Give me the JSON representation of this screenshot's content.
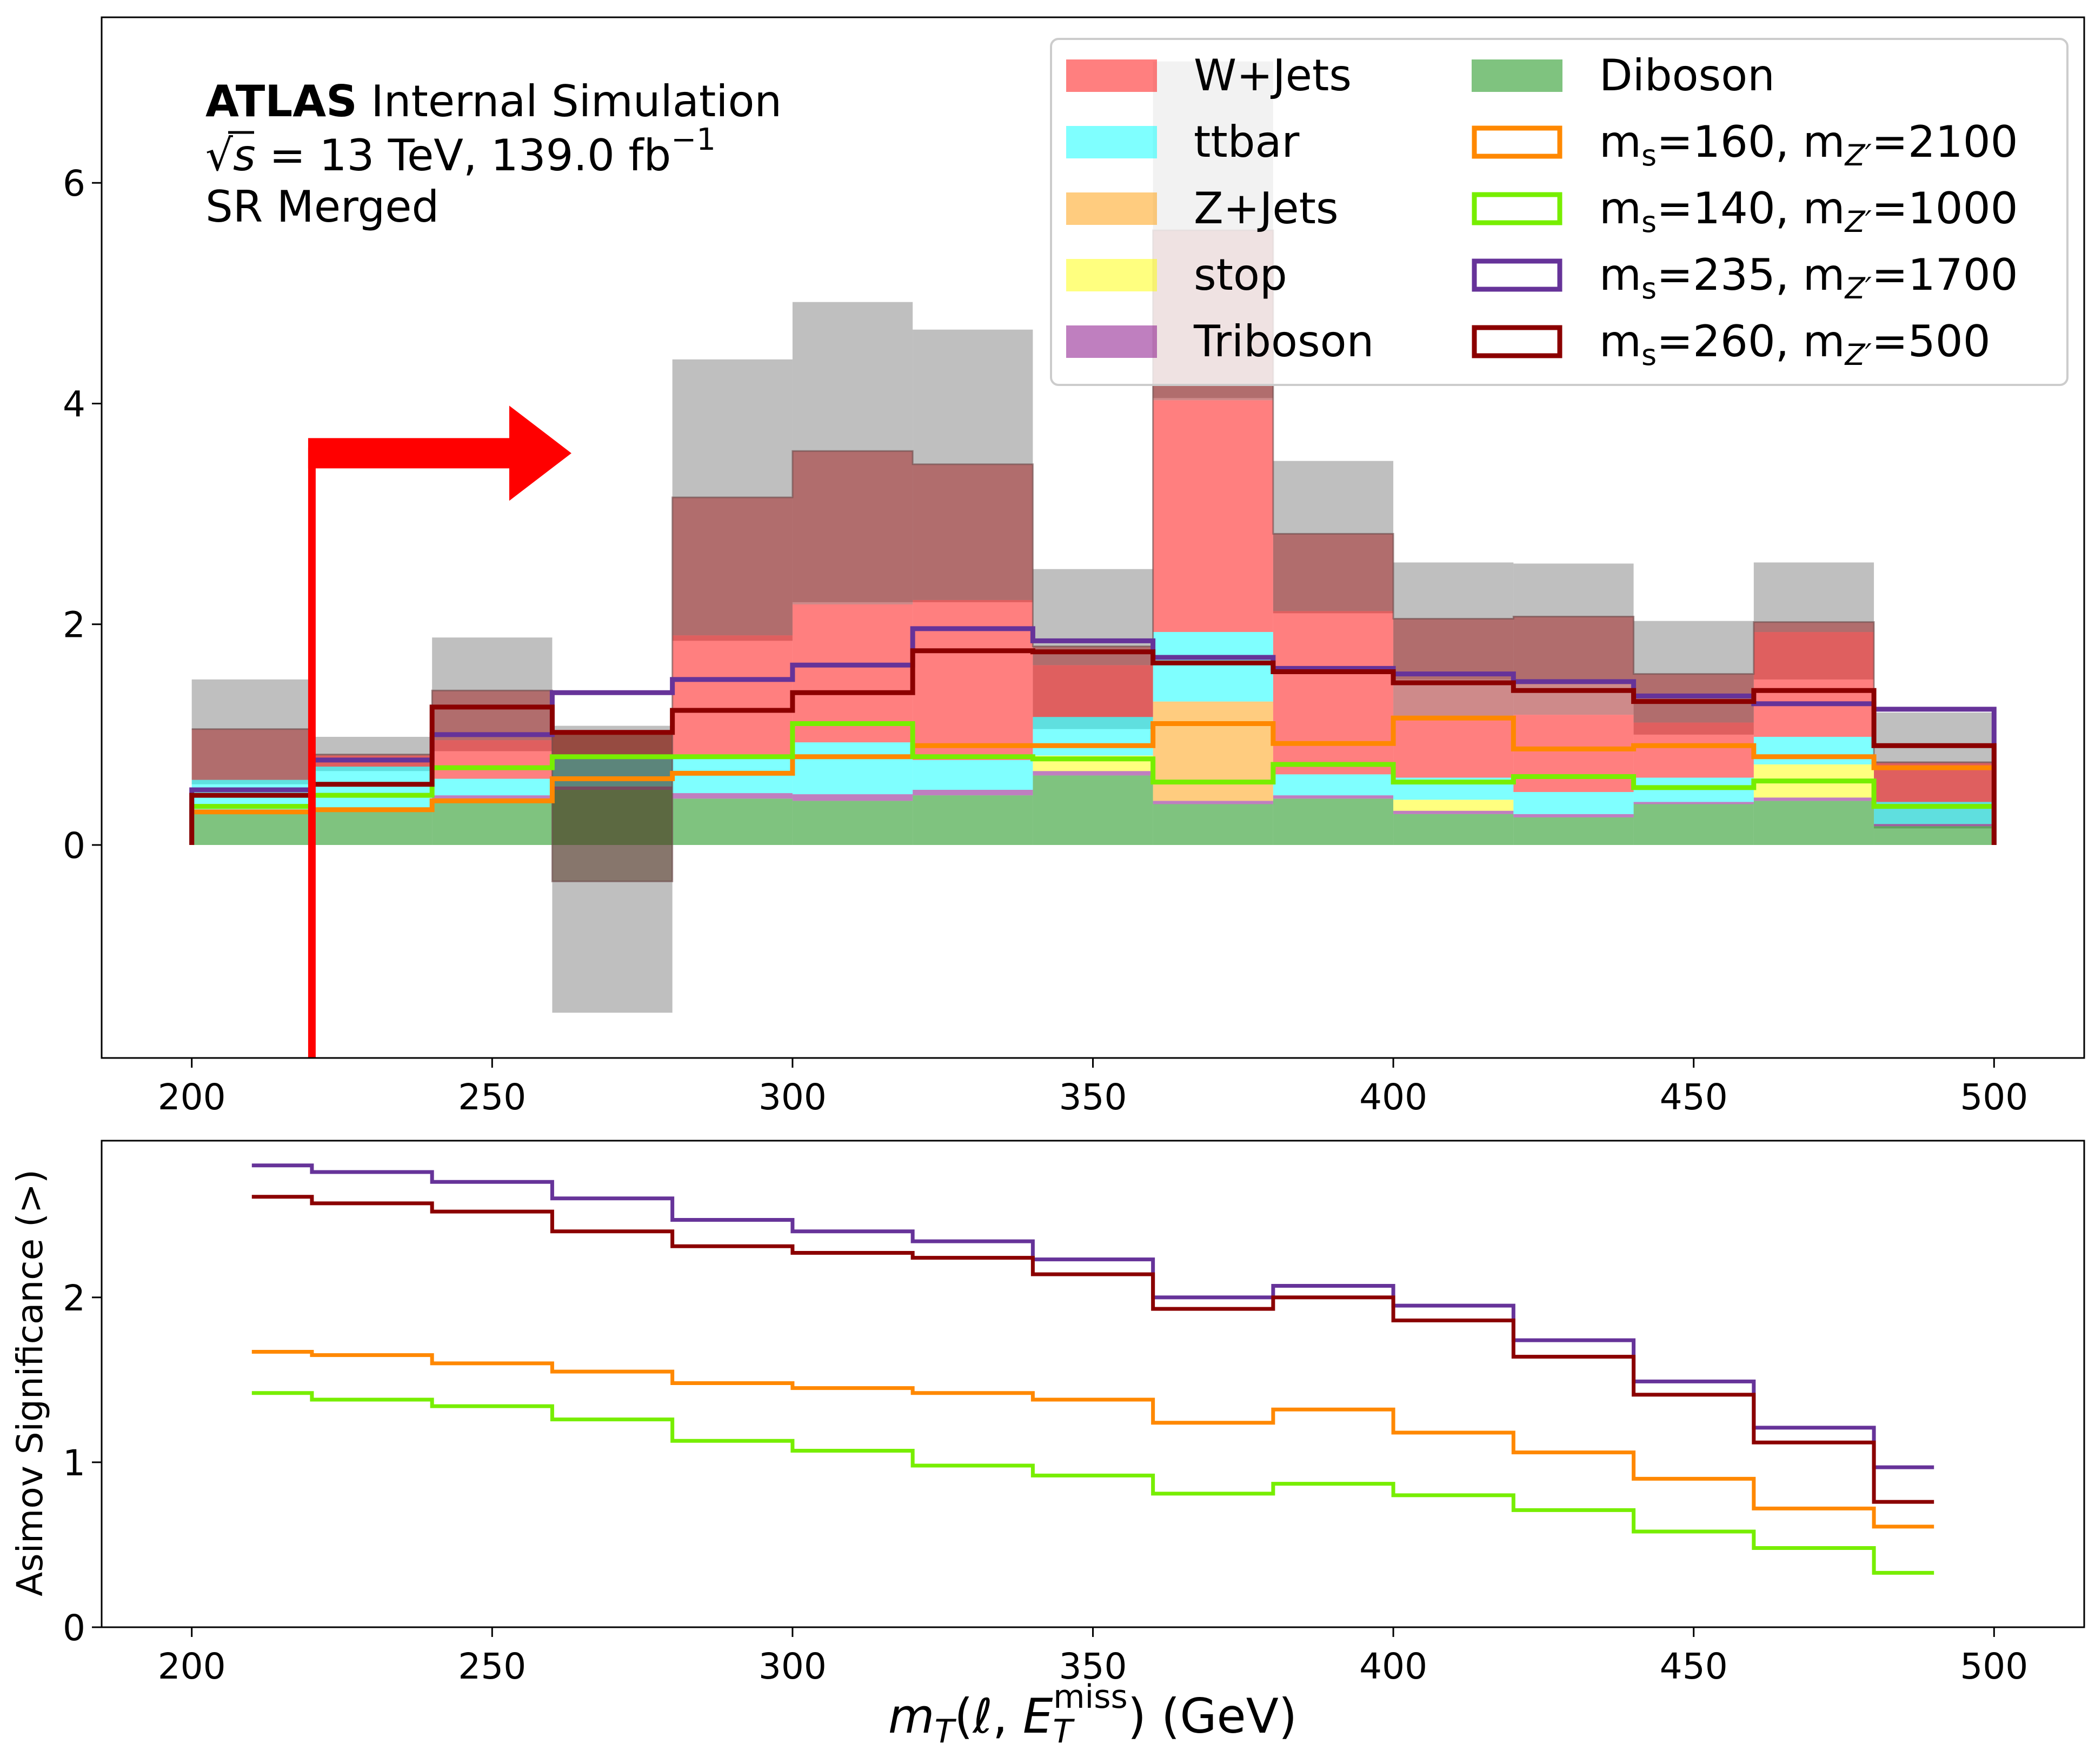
{
  "chart_data": [
    {
      "type": "bar",
      "panel": "top",
      "annotation": {
        "title_bold": "ATLAS",
        "title_rest": " Internal Simulation",
        "line2_sqrt": "√",
        "line2_s": "s",
        "line2_rest": " = 13 TeV, 139.0 fb",
        "line2_sup": "−1",
        "line3": "SR Merged"
      },
      "x_bin_edges": [
        200,
        220,
        240,
        260,
        280,
        300,
        320,
        340,
        360,
        380,
        400,
        420,
        440,
        460,
        480,
        500
      ],
      "xlim": [
        185,
        515
      ],
      "ylim": [
        -1.93,
        7.5
      ],
      "yticks": [
        0,
        2,
        4,
        6
      ],
      "xticks": [
        200,
        250,
        300,
        350,
        400,
        450,
        500
      ],
      "stack_note": "Stacked backgrounds with statistical uncertainty band",
      "backgrounds": [
        {
          "name": "Diboson",
          "color": "#008800",
          "alpha": 0.5,
          "values": [
            0.28,
            0.3,
            0.42,
            0.5,
            0.42,
            0.4,
            0.45,
            0.63,
            0.37,
            0.42,
            0.28,
            0.25,
            0.37,
            0.4,
            0.17
          ]
        },
        {
          "name": "Triboson",
          "color": "#800080",
          "alpha": 0.5,
          "values": [
            0.03,
            0.03,
            0.03,
            0.03,
            0.05,
            0.06,
            0.05,
            0.04,
            0.03,
            0.03,
            0.03,
            0.03,
            0.02,
            0.03,
            0.02
          ]
        },
        {
          "name": "stop",
          "color": "#ffff00",
          "alpha": 0.5,
          "values": [
            0.0,
            0.0,
            0.0,
            0.0,
            0.0,
            0.0,
            0.0,
            0.14,
            0.0,
            0.0,
            0.1,
            0.0,
            0.0,
            0.3,
            0.0
          ]
        },
        {
          "name": "Z+Jets",
          "color": "#ff9900",
          "alpha": 0.5,
          "values": [
            0.0,
            0.0,
            0.0,
            0.0,
            0.0,
            0.0,
            0.0,
            0.0,
            0.9,
            0.0,
            0.0,
            0.0,
            0.0,
            0.0,
            0.0
          ]
        },
        {
          "name": "ttbar",
          "color": "#00ffff",
          "alpha": 0.5,
          "values": [
            0.28,
            0.38,
            0.15,
            0.28,
            0.33,
            0.47,
            0.27,
            0.35,
            0.63,
            0.19,
            0.2,
            0.2,
            0.22,
            0.25,
            0.2
          ]
        },
        {
          "name": "W+Jets",
          "color": "#ff0000",
          "alpha": 0.5,
          "values": [
            0.0,
            0.1,
            0.35,
            0.2,
            1.1,
            1.25,
            1.45,
            0.47,
            2.1,
            1.48,
            0.55,
            0.7,
            0.5,
            0.95,
            0.35
          ]
        }
      ],
      "total_visible": [
        1.05,
        0.82,
        1.4,
        -0.33,
        3.15,
        3.57,
        3.45,
        1.8,
        5.57,
        2.82,
        2.05,
        2.07,
        1.55,
        2.02,
        0.75
      ],
      "uncertainty_band": {
        "color": "#808080",
        "alpha": 0.5,
        "low": [
          0.55,
          0.67,
          0.85,
          -1.52,
          1.85,
          2.2,
          2.2,
          1.05,
          4.05,
          2.1,
          1.5,
          1.5,
          1.0,
          1.5,
          0.15
        ],
        "high": [
          1.5,
          0.98,
          1.88,
          1.08,
          4.4,
          4.92,
          4.67,
          2.5,
          7.1,
          3.48,
          2.56,
          2.55,
          2.03,
          2.56,
          1.2
        ]
      },
      "signals": [
        {
          "name": "m_s=160, m_Z'=2100",
          "sub_s": "s",
          "sub_z": "Z′",
          "label_parts": [
            "m",
            "s",
            "=160, m",
            "Z′",
            "=2100"
          ],
          "color": "#ff8800",
          "values": [
            0.3,
            0.32,
            0.4,
            0.6,
            0.65,
            0.8,
            0.9,
            0.9,
            1.1,
            0.92,
            1.15,
            0.87,
            0.9,
            0.8,
            0.7
          ]
        },
        {
          "name": "m_s=140, m_Z'=1000",
          "label_parts": [
            "m",
            "s",
            "=140, m",
            "Z′",
            "=1000"
          ],
          "color": "#77ee00",
          "values": [
            0.35,
            0.45,
            0.7,
            0.8,
            0.8,
            1.1,
            0.8,
            0.78,
            0.57,
            0.73,
            0.57,
            0.62,
            0.52,
            0.58,
            0.35
          ]
        },
        {
          "name": "m_s=235, m_Z'=1700",
          "label_parts": [
            "m",
            "s",
            "=235, m",
            "Z′",
            "=1700"
          ],
          "color": "#663399",
          "values": [
            0.5,
            0.77,
            1.0,
            1.38,
            1.5,
            1.63,
            1.96,
            1.85,
            1.7,
            1.6,
            1.55,
            1.48,
            1.35,
            1.28,
            1.23
          ]
        },
        {
          "name": "m_s=260, m_Z'=500",
          "label_parts": [
            "m",
            "s",
            "=260, m",
            "Z′",
            "=500"
          ],
          "color": "#8b0000",
          "values": [
            0.45,
            0.55,
            1.25,
            1.02,
            1.22,
            1.38,
            1.76,
            1.75,
            1.65,
            1.57,
            1.47,
            1.4,
            1.3,
            1.4,
            0.9
          ]
        }
      ],
      "cut_marker": {
        "x": 220,
        "color": "#ff0000",
        "direction": "right"
      }
    },
    {
      "type": "line",
      "panel": "bottom",
      "ylabel": "Asimov Significance (>)",
      "xlabel_math": {
        "m": "m",
        "T": "T",
        "l": "ℓ",
        "E": "E",
        "miss": "miss",
        "T2": "T",
        "unit": " (GeV)"
      },
      "x_bin_edges": [
        210,
        220,
        240,
        260,
        280,
        300,
        320,
        340,
        360,
        380,
        400,
        420,
        440,
        460,
        480,
        490
      ],
      "xlim": [
        185,
        515
      ],
      "ylim": [
        0,
        2.95
      ],
      "yticks": [
        0,
        1,
        2
      ],
      "xticks": [
        200,
        250,
        300,
        350,
        400,
        450,
        500
      ],
      "series": [
        {
          "name": "m_s=235, m_Z'=1700",
          "color": "#663399",
          "values": [
            2.8,
            2.76,
            2.7,
            2.6,
            2.47,
            2.4,
            2.34,
            2.23,
            2.0,
            2.07,
            1.95,
            1.74,
            1.49,
            1.21,
            0.97
          ]
        },
        {
          "name": "m_s=260, m_Z'=500",
          "color": "#8b0000",
          "values": [
            2.61,
            2.57,
            2.52,
            2.4,
            2.31,
            2.27,
            2.24,
            2.14,
            1.93,
            2.0,
            1.86,
            1.64,
            1.41,
            1.12,
            0.76
          ]
        },
        {
          "name": "m_s=160, m_Z'=2100",
          "color": "#ff8800",
          "values": [
            1.67,
            1.65,
            1.6,
            1.55,
            1.48,
            1.45,
            1.42,
            1.38,
            1.24,
            1.32,
            1.18,
            1.06,
            0.9,
            0.72,
            0.61
          ]
        },
        {
          "name": "m_s=140, m_Z'=1000",
          "color": "#77ee00",
          "values": [
            1.42,
            1.38,
            1.34,
            1.26,
            1.13,
            1.07,
            0.98,
            0.92,
            0.81,
            0.87,
            0.8,
            0.71,
            0.58,
            0.48,
            0.33
          ]
        }
      ]
    }
  ],
  "legend": {
    "placement": "top-right",
    "left_column": [
      "W+Jets",
      "ttbar",
      "Z+Jets",
      "stop",
      "Triboson"
    ],
    "right_column_first": "Diboson"
  }
}
